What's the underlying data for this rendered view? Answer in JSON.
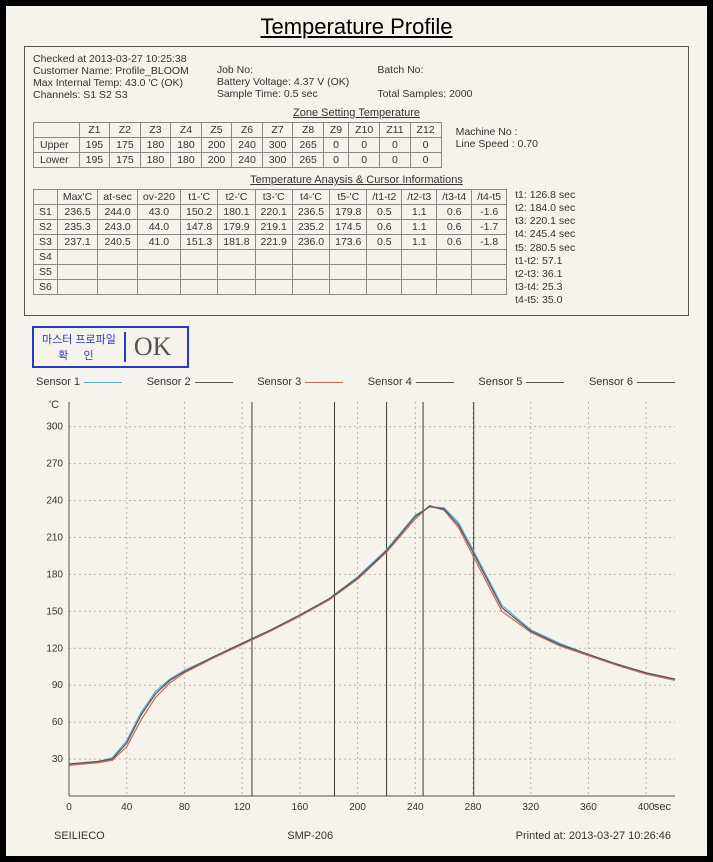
{
  "title": "Temperature Profile",
  "meta": {
    "col1": [
      "Checked at 2013-03-27  10:25:38",
      "Customer Name: Profile_BLOOM",
      "Max Internal Temp: 43.0 'C (OK)",
      "Channels: S1 S2 S3"
    ],
    "col2": [
      "Job No:",
      "Battery Voltage: 4.37 V (OK)",
      "Sample Time:  0.5 sec"
    ],
    "col3": [
      "Batch No:",
      "",
      "Total Samples:  2000"
    ]
  },
  "zone_section_title": "Zone Setting Temperature",
  "zone": {
    "headers": [
      "",
      "Z1",
      "Z2",
      "Z3",
      "Z4",
      "Z5",
      "Z6",
      "Z7",
      "Z8",
      "Z9",
      "Z10",
      "Z11",
      "Z12"
    ],
    "rows": [
      [
        "Upper",
        "195",
        "175",
        "180",
        "180",
        "200",
        "240",
        "300",
        "265",
        "0",
        "0",
        "0",
        "0"
      ],
      [
        "Lower",
        "195",
        "175",
        "180",
        "180",
        "200",
        "240",
        "300",
        "265",
        "0",
        "0",
        "0",
        "0"
      ]
    ],
    "side": [
      "Machine No :",
      "Line Speed : 0.70"
    ]
  },
  "analysis_section_title": "Temperature Anaysis & Cursor Informations",
  "analysis": {
    "headers": [
      "",
      "Max'C",
      "at-sec",
      "ov-220",
      "t1-'C",
      "t2-'C",
      "t3-'C",
      "t4-'C",
      "t5-'C",
      "/t1-t2",
      "/t2-t3",
      "/t3-t4",
      "/t4-t5"
    ],
    "rows": [
      [
        "S1",
        "236.5",
        "244.0",
        "43.0",
        "150.2",
        "180.1",
        "220.1",
        "236.5",
        "179.8",
        "0.5",
        "1.1",
        "0.6",
        "-1.6"
      ],
      [
        "S2",
        "235.3",
        "243.0",
        "44.0",
        "147.8",
        "179.9",
        "219.1",
        "235.2",
        "174.5",
        "0.6",
        "1.1",
        "0.6",
        "-1.7"
      ],
      [
        "S3",
        "237.1",
        "240.5",
        "41.0",
        "151.3",
        "181.8",
        "221.9",
        "236.0",
        "173.6",
        "0.5",
        "1.1",
        "0.6",
        "-1.8"
      ],
      [
        "S4",
        "",
        "",
        "",
        "",
        "",
        "",
        "",
        "",
        "",
        "",
        "",
        ""
      ],
      [
        "S5",
        "",
        "",
        "",
        "",
        "",
        "",
        "",
        "",
        "",
        "",
        "",
        ""
      ],
      [
        "S6",
        "",
        "",
        "",
        "",
        "",
        "",
        "",
        "",
        "",
        "",
        "",
        ""
      ]
    ],
    "t_info": [
      "t1: 126.8 sec",
      "t2: 184.0 sec",
      "t3: 220.1 sec",
      "t4: 245.4 sec",
      "t5: 280.5 sec",
      "t1-t2: 57.1",
      "t2-t3: 36.1",
      "t3-t4: 25.3",
      "t4-t5: 35.0"
    ]
  },
  "stamp": {
    "line1": "마스터 프로파일",
    "line2": "확 인",
    "ok": "OK"
  },
  "legend": [
    {
      "label": "Sensor 1",
      "color": "#5aa8d8"
    },
    {
      "label": "Sensor 2",
      "color": "#555555"
    },
    {
      "label": "Sensor 3",
      "color": "#c46a5a"
    },
    {
      "label": "Sensor 4",
      "color": "#555555"
    },
    {
      "label": "Sensor 5",
      "color": "#555555"
    },
    {
      "label": "Sensor 6",
      "color": "#555555"
    }
  ],
  "chart": {
    "type": "line",
    "background_color": "#f5f3ec",
    "grid_color": "#b8b5aa",
    "axis_color": "#555555",
    "xlim": [
      0,
      420
    ],
    "ylim": [
      0,
      320
    ],
    "xtick_step": 40,
    "ytick_step": 30,
    "xlabel": "sec",
    "ylabel": "'C",
    "label_fontsize": 11,
    "tick_fontsize": 10,
    "cursor_lines_x": [
      126.8,
      184.0,
      220.1,
      245.4,
      280.5
    ],
    "cursor_color": "#3a3a3a",
    "series": [
      {
        "name": "S1",
        "color": "#5aa8d8",
        "width": 1.2,
        "x": [
          0,
          10,
          20,
          30,
          40,
          50,
          60,
          70,
          80,
          100,
          120,
          140,
          160,
          180,
          200,
          220,
          240,
          250,
          260,
          270,
          280,
          300,
          320,
          340,
          360,
          380,
          400,
          420
        ],
        "y": [
          26,
          27,
          28,
          31,
          45,
          68,
          85,
          95,
          102,
          113,
          124,
          135,
          147,
          160,
          178,
          200,
          228,
          235,
          234,
          222,
          200,
          155,
          135,
          124,
          115,
          107,
          100,
          95
        ]
      },
      {
        "name": "S3",
        "color": "#c46a5a",
        "width": 1.2,
        "x": [
          0,
          10,
          20,
          30,
          40,
          50,
          60,
          70,
          80,
          100,
          120,
          140,
          160,
          180,
          200,
          220,
          240,
          250,
          260,
          270,
          280,
          300,
          320,
          340,
          360,
          380,
          400,
          420
        ],
        "y": [
          25,
          26,
          27,
          29,
          40,
          62,
          80,
          92,
          100,
          112,
          123,
          134,
          146,
          159,
          176,
          198,
          225,
          236,
          232,
          218,
          195,
          150,
          133,
          122,
          114,
          106,
          99,
          94
        ]
      },
      {
        "name": "S2",
        "color": "#555555",
        "width": 1.2,
        "x": [
          0,
          10,
          20,
          30,
          40,
          50,
          60,
          70,
          80,
          100,
          120,
          140,
          160,
          180,
          200,
          220,
          240,
          250,
          260,
          270,
          280,
          300,
          320,
          340,
          360,
          380,
          400,
          420
        ],
        "y": [
          26,
          27,
          28,
          30,
          43,
          66,
          83,
          94,
          101,
          113,
          124,
          135,
          147,
          160,
          177,
          199,
          227,
          235,
          233,
          220,
          198,
          153,
          134,
          123,
          115,
          107,
          100,
          95
        ]
      }
    ]
  },
  "footer": {
    "left": "SEILIECO",
    "center": "SMP-206",
    "right": "Printed at: 2013-03-27  10:26:46"
  }
}
